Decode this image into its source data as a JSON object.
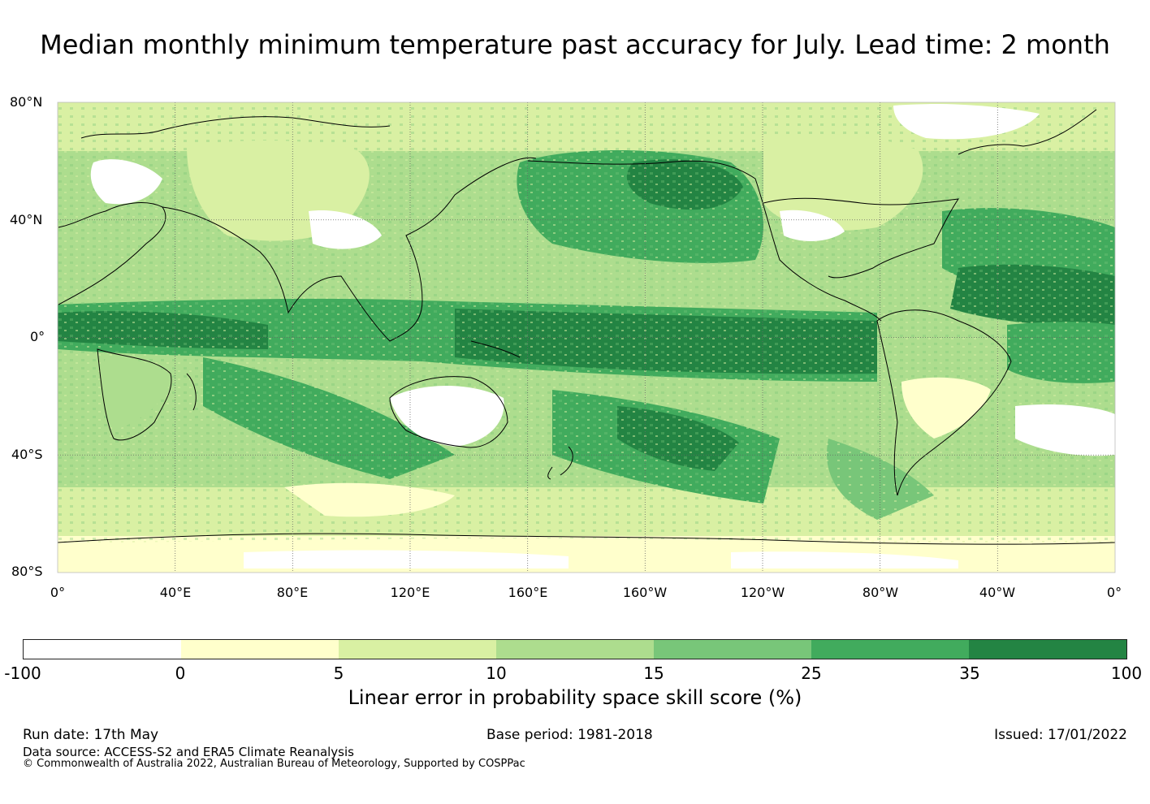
{
  "title": "Median monthly minimum temperature past accuracy for July. Lead time: 2 month",
  "map": {
    "lat_labels": [
      "80°N",
      "40°N",
      "0°",
      "40°S",
      "80°S"
    ],
    "lon_labels": [
      "0°",
      "40°E",
      "80°E",
      "120°E",
      "160°E",
      "160°W",
      "120°W",
      "80°W",
      "40°W",
      "0°"
    ],
    "ocean_band_color": "#238b45",
    "graticule": "dotted"
  },
  "colorbar": {
    "colors": [
      "#ffffff",
      "#ffffcc",
      "#d9f0a3",
      "#addd8e",
      "#78c679",
      "#41ab5d",
      "#238443"
    ],
    "ticks": [
      "-100",
      "0",
      "5",
      "10",
      "15",
      "25",
      "35",
      "100"
    ],
    "label": "Linear error in probability space skill score (%)"
  },
  "footer": {
    "run_date": "Run date: 17th May",
    "base_period": "Base period: 1981-2018",
    "issued": "Issued: 17/01/2022",
    "data_source": "Data source: ACCESS-S2 and ERA5 Climate Reanalysis",
    "copyright": "© Commonwealth of Australia 2022, Australian Bureau of Meteorology, Supported by COSPPac"
  }
}
